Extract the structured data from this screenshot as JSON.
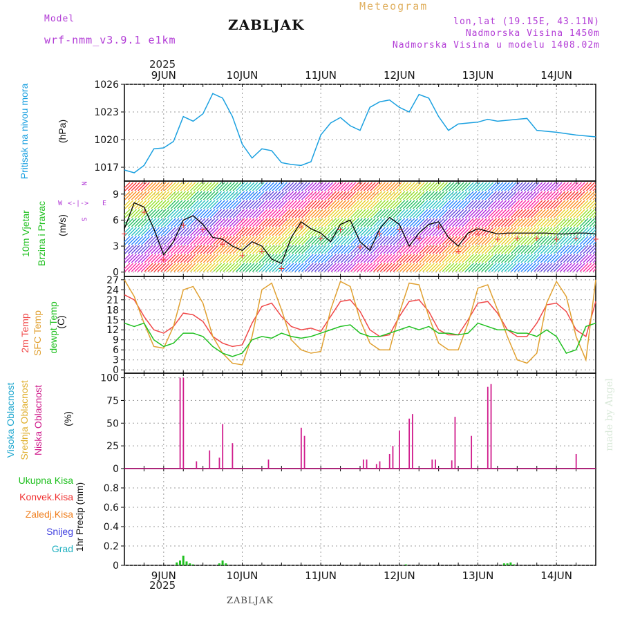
{
  "header": {
    "model_label": "Model",
    "model_name": "wrf-nmm_v3.9.1 e1km",
    "station": "ZABLJAK",
    "product": "Meteogram",
    "lonlat": "lon,lat (19.15E, 43.11N)",
    "altitude": "Nadmorska Visina 1450m",
    "model_altitude": "Nadmorska Visina u modelu 1408.02m",
    "year_top": "2025",
    "year_bottom": "2025",
    "footer": "ZABLJAK",
    "credit": "made by Angel"
  },
  "colors": {
    "pressure": "#1aa0e0",
    "temp2m": "#f04848",
    "sfc_temp": "#e0a030",
    "dewpt": "#20c020",
    "high_cloud": "#20a8d0",
    "mid_cloud": "#e0b030",
    "low_cloud": "#d01c8c",
    "wind_speed": "#000000",
    "gust_marker": "#f03030",
    "total_precip": "#20c020",
    "conv_precip": "#f03030",
    "frozen_precip": "#f08020",
    "snow": "#4040e0",
    "hail": "#20b0c0",
    "credit": "#d8e8d8"
  },
  "panel_labels": {
    "pressure": [
      "Pritisak na nivou mora"
    ],
    "pressure_unit": "(hPa)",
    "wind": [
      "10m Vjetar",
      "Brzina i Pravac"
    ],
    "wind_unit": "(m/s)",
    "temp": [
      "2m Temp",
      "SFC Temp",
      "dewpt Temp"
    ],
    "temp_unit": "(C)",
    "cloud": [
      "Visoka Oblacnost",
      "Srednja Oblacnost",
      "Niska Oblacnost"
    ],
    "cloud_unit": "(%)",
    "precip": [
      "Ukupna Kisa",
      "Konvek.Kisa",
      "Zaledj.Kisa",
      "Snijeg",
      "Grad"
    ],
    "precip_unit": "1hr Precip (mm)",
    "compass": {
      "n": "N",
      "s": "S",
      "w": "W",
      "e": "E"
    }
  },
  "chart_data": [
    {
      "type": "line",
      "name": "pressure",
      "x_start": "2025-06-08T12:00",
      "x_ticks": [
        "9JUN",
        "10JUN",
        "11JUN",
        "12JUN",
        "13JUN",
        "14JUN"
      ],
      "ylim": [
        1015.5,
        1026
      ],
      "yticks": [
        1017,
        1020,
        1023,
        1026
      ],
      "ylabel": "(hPa)",
      "grid": true,
      "series": [
        {
          "x": [
            0,
            3,
            6,
            9,
            12,
            15,
            18,
            21,
            24,
            27,
            30,
            33,
            36,
            39,
            42,
            45,
            48,
            51,
            54,
            57,
            60,
            63,
            66,
            69,
            72,
            75,
            78,
            81,
            84,
            87,
            90,
            93,
            96,
            99,
            102,
            105,
            108,
            111,
            114,
            117,
            120,
            123,
            126,
            132,
            138,
            144
          ],
          "values": [
            1016.7,
            1016.4,
            1017.2,
            1019.0,
            1019.1,
            1019.8,
            1022.5,
            1022.0,
            1022.8,
            1025.0,
            1024.5,
            1022.5,
            1019.5,
            1018.0,
            1019.0,
            1018.8,
            1017.5,
            1017.3,
            1017.2,
            1017.6,
            1020.5,
            1021.8,
            1022.4,
            1021.5,
            1021.0,
            1023.5,
            1024.1,
            1024.3,
            1023.5,
            1023.0,
            1024.9,
            1024.5,
            1022.5,
            1021.0,
            1021.7,
            1021.8,
            1021.9,
            1022.2,
            1022.0,
            1022.1,
            1022.2,
            1022.3,
            1021.0,
            1020.8,
            1020.5,
            1020.3
          ]
        }
      ]
    },
    {
      "type": "line",
      "name": "wind",
      "x_start": "2025-06-08T12:00",
      "ylim": [
        -0.5,
        10.5
      ],
      "yticks": [
        0,
        3,
        6,
        9
      ],
      "ylabel": "(m/s)",
      "grid": true,
      "series": [
        {
          "name": "speed",
          "x": [
            0,
            3,
            6,
            9,
            12,
            15,
            18,
            21,
            24,
            27,
            30,
            33,
            36,
            39,
            42,
            45,
            48,
            51,
            54,
            57,
            60,
            63,
            66,
            69,
            72,
            75,
            78,
            81,
            84,
            87,
            90,
            93,
            96,
            99,
            102,
            105,
            108,
            111,
            114,
            117,
            120,
            123,
            126,
            129,
            132,
            135,
            138,
            141,
            144
          ],
          "values": [
            5,
            8,
            7.5,
            5,
            2,
            3.5,
            6,
            6.5,
            5.5,
            4,
            3.8,
            3,
            2.5,
            3.5,
            3,
            1.5,
            1,
            4,
            5.8,
            5,
            4.5,
            3.5,
            5.5,
            6,
            3.5,
            2.5,
            5,
            6.3,
            5.5,
            3,
            4.5,
            5.5,
            5.8,
            4,
            3,
            4.5,
            5,
            4.7,
            4.4,
            4.5,
            4.5,
            4.5,
            4.5,
            4.5,
            4.4,
            4.4,
            4.5,
            4.5,
            4.4
          ]
        }
      ]
    },
    {
      "type": "line",
      "name": "temperature",
      "x_start": "2025-06-08T12:00",
      "ylim": [
        -1,
        28
      ],
      "yticks": [
        0,
        3,
        6,
        9,
        12,
        15,
        18,
        21,
        24,
        27
      ],
      "ylabel": "(C)",
      "grid": true,
      "series": [
        {
          "name": "2m Temp",
          "x": [
            0,
            3,
            6,
            9,
            12,
            15,
            18,
            21,
            24,
            27,
            30,
            33,
            36,
            39,
            42,
            45,
            48,
            51,
            54,
            57,
            60,
            63,
            66,
            69,
            72,
            75,
            78,
            81,
            84,
            87,
            90,
            93,
            96,
            99,
            102,
            105,
            108,
            111,
            114,
            117,
            120,
            123,
            126,
            129,
            132,
            135,
            138,
            141,
            144
          ],
          "values": [
            22.5,
            21,
            16,
            12,
            11,
            13,
            17,
            16.5,
            14.5,
            10,
            8,
            7,
            7.5,
            14,
            19,
            20,
            16,
            13,
            12,
            12.5,
            11.5,
            16,
            20.5,
            21,
            17.5,
            12,
            10,
            10.5,
            16,
            20.5,
            21,
            17.5,
            12,
            10.5,
            10.5,
            15,
            20,
            20.5,
            17,
            12,
            10,
            10,
            14,
            19.5,
            20,
            17.5,
            12,
            10,
            20.5
          ]
        },
        {
          "name": "SFC Temp",
          "x": [
            0,
            3,
            6,
            9,
            12,
            15,
            18,
            21,
            24,
            27,
            30,
            33,
            36,
            39,
            42,
            45,
            48,
            51,
            54,
            57,
            60,
            63,
            66,
            69,
            72,
            75,
            78,
            81,
            84,
            87,
            90,
            93,
            96,
            99,
            102,
            105,
            108,
            111,
            114,
            117,
            120,
            123,
            126,
            129,
            132,
            135,
            138,
            141,
            144
          ],
          "values": [
            27,
            22,
            14,
            7,
            6.5,
            13,
            24,
            25,
            20,
            10,
            5,
            2,
            1.5,
            10,
            24,
            26,
            18,
            9,
            6,
            5,
            5.5,
            18,
            26.5,
            25,
            15,
            8,
            6,
            6,
            17,
            26,
            25.5,
            16,
            8,
            6,
            6,
            14,
            24.5,
            25.5,
            18,
            10,
            3,
            2,
            5,
            20,
            26.5,
            22,
            10,
            3,
            27
          ]
        },
        {
          "name": "dewpt Temp",
          "x": [
            0,
            3,
            6,
            9,
            12,
            15,
            18,
            21,
            24,
            27,
            30,
            33,
            36,
            39,
            42,
            45,
            48,
            51,
            54,
            57,
            60,
            63,
            66,
            69,
            72,
            75,
            78,
            81,
            84,
            87,
            90,
            93,
            96,
            99,
            102,
            105,
            108,
            111,
            114,
            117,
            120,
            123,
            126,
            129,
            132,
            135,
            138,
            141,
            144
          ],
          "values": [
            14,
            13,
            14,
            9,
            7,
            8,
            11,
            11,
            10,
            7,
            5,
            4,
            5,
            9,
            10,
            9.5,
            11,
            10,
            9.5,
            10,
            11,
            12,
            13,
            13.5,
            11,
            10,
            10,
            11,
            12,
            13,
            12,
            13,
            11,
            11,
            10.5,
            11,
            14,
            13,
            12,
            12,
            11,
            11,
            10,
            12,
            10,
            5,
            6,
            13,
            14
          ]
        }
      ]
    },
    {
      "type": "bar",
      "name": "cloud",
      "x_start": "2025-06-08T12:00",
      "ylim": [
        0,
        105
      ],
      "yticks": [
        0,
        25,
        50,
        75,
        100
      ],
      "ylabel": "(%)",
      "grid": true,
      "series": [
        {
          "name": "Niska Oblacnost",
          "x": [
            17,
            18,
            22,
            26,
            29,
            30,
            33,
            44,
            54,
            55,
            73,
            74,
            77,
            78,
            81,
            82,
            84,
            87,
            88,
            94,
            95,
            100,
            101,
            106,
            111,
            112,
            114,
            116,
            122,
            123,
            126,
            127,
            138
          ],
          "values": [
            100,
            100,
            8,
            20,
            12,
            49,
            28,
            10,
            45,
            36,
            10,
            10,
            5,
            8,
            16,
            25,
            42,
            55,
            60,
            10,
            10,
            9,
            57,
            36,
            90,
            93,
            0,
            0,
            0,
            0,
            0,
            0,
            16
          ]
        }
      ]
    },
    {
      "type": "bar",
      "name": "precipitation",
      "x_start": "2025-06-08T12:00",
      "ylim": [
        0,
        1.0
      ],
      "yticks": [
        0,
        0.2,
        0.4,
        0.6,
        0.8
      ],
      "ylabel": "1hr Precip (mm)",
      "grid": true,
      "series": [
        {
          "name": "Ukupna Kisa",
          "x": [
            16,
            17,
            18,
            19,
            20,
            21,
            29,
            30,
            31,
            86,
            116,
            117,
            118,
            119
          ],
          "values": [
            0.03,
            0.05,
            0.1,
            0.04,
            0.02,
            0.01,
            0.02,
            0.05,
            0.02,
            0.01,
            0.02,
            0.02,
            0.03,
            0.01
          ]
        }
      ],
      "x_ticks_bottom": [
        "9JUN",
        "10JUN",
        "11JUN",
        "12JUN",
        "13JUN",
        "14JUN"
      ]
    }
  ]
}
